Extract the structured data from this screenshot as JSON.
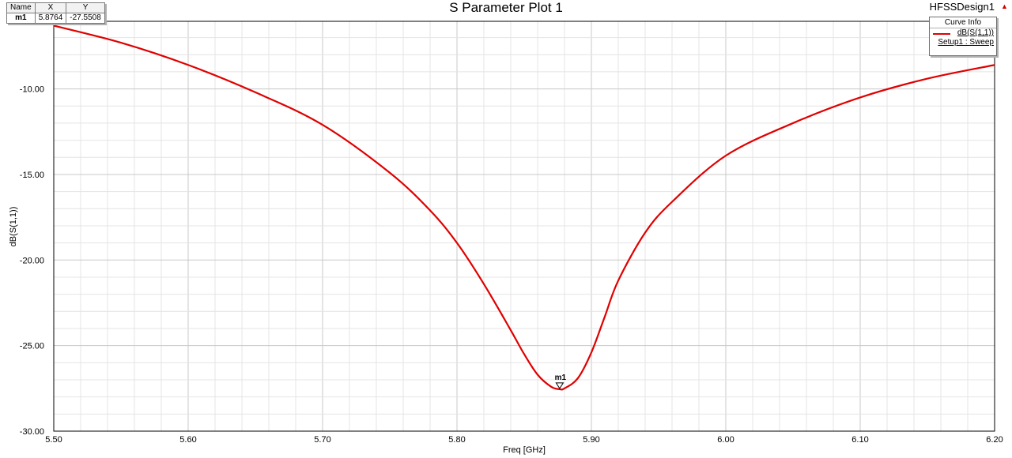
{
  "header": {
    "title": "S Parameter Plot 1",
    "design_name": "HFSSDesign1",
    "warning_icon": "warning-triangle-icon"
  },
  "marker_table": {
    "headers": [
      "Name",
      "X",
      "Y"
    ],
    "rows": [
      {
        "name": "m1",
        "x": "5.8764",
        "y": "-27.5508"
      }
    ]
  },
  "curve_info": {
    "title": "Curve Info",
    "trace": "dB(S(1,1))",
    "setup": "Setup1 : Sweep"
  },
  "chart_data": {
    "type": "line",
    "title": "S Parameter Plot 1",
    "xlabel": "Freq [GHz]",
    "ylabel": "dB(S(1,1))",
    "xlim": [
      5.5,
      6.2
    ],
    "ylim": [
      -30,
      -6.05
    ],
    "x_ticks": [
      "5.50",
      "5.60",
      "5.70",
      "5.80",
      "5.90",
      "6.00",
      "6.10",
      "6.20"
    ],
    "y_ticks": [
      "-10.00",
      "-15.00",
      "-20.00",
      "-25.00",
      "-30.00"
    ],
    "grid": true,
    "legend_position": "top-right",
    "series": [
      {
        "name": "dB(S(1,1))",
        "color": "#e00000",
        "x": [
          5.5,
          5.55,
          5.6,
          5.65,
          5.7,
          5.75,
          5.78,
          5.8,
          5.82,
          5.84,
          5.85,
          5.86,
          5.87,
          5.8764,
          5.88,
          5.89,
          5.9,
          5.91,
          5.92,
          5.94,
          5.96,
          6.0,
          6.05,
          6.1,
          6.15,
          6.2
        ],
        "y": [
          -6.3,
          -7.3,
          -8.6,
          -10.2,
          -12.1,
          -14.9,
          -17.1,
          -19.0,
          -21.4,
          -24.1,
          -25.5,
          -26.7,
          -27.4,
          -27.55,
          -27.5,
          -26.9,
          -25.4,
          -23.3,
          -21.2,
          -18.4,
          -16.6,
          -13.9,
          -12.0,
          -10.5,
          -9.4,
          -8.6
        ]
      }
    ],
    "markers": [
      {
        "name": "m1",
        "x": 5.8764,
        "y": -27.5508
      }
    ]
  }
}
